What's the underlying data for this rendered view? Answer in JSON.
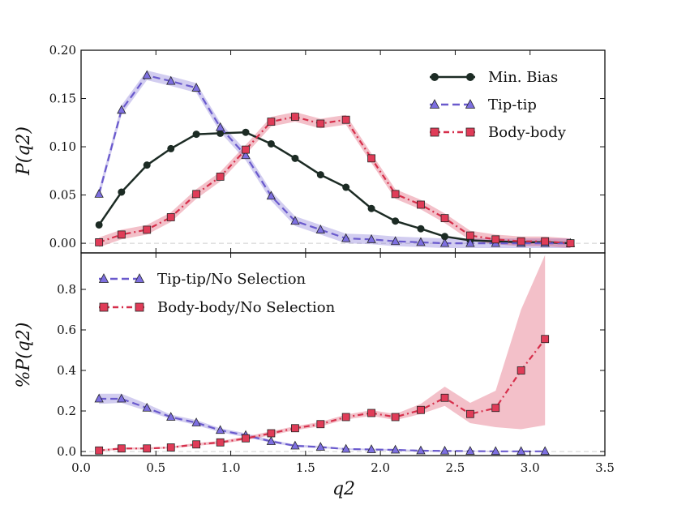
{
  "chart_data": [
    {
      "type": "line",
      "xlim": [
        0.0,
        3.5
      ],
      "ylim": [
        -0.01,
        0.2
      ],
      "ylabel": "P(q2)",
      "yticks": [
        "0.00",
        "0.05",
        "0.10",
        "0.15",
        "0.20"
      ],
      "legend_position": "top-right",
      "series": [
        {
          "name": "Min. Bias",
          "color": "#1c2b24",
          "marker": "circle",
          "x": [
            0.12,
            0.27,
            0.44,
            0.6,
            0.77,
            0.93,
            1.1,
            1.27,
            1.43,
            1.6,
            1.77,
            1.94,
            2.1,
            2.27,
            2.43,
            2.6,
            2.77,
            2.94,
            3.1,
            3.27
          ],
          "y": [
            0.019,
            0.053,
            0.081,
            0.098,
            0.113,
            0.114,
            0.115,
            0.103,
            0.088,
            0.071,
            0.058,
            0.036,
            0.023,
            0.015,
            0.007,
            0.003,
            0.002,
            0.001,
            0.001,
            0.0
          ]
        },
        {
          "name": "Tip-tip",
          "color": "#6a5acd",
          "marker": "triangle",
          "x": [
            0.12,
            0.27,
            0.44,
            0.6,
            0.77,
            0.93,
            1.1,
            1.27,
            1.43,
            1.6,
            1.77,
            1.94,
            2.1,
            2.27,
            2.43,
            2.6,
            2.77,
            2.94,
            3.1,
            3.27
          ],
          "y": [
            0.051,
            0.138,
            0.174,
            0.168,
            0.161,
            0.12,
            0.091,
            0.049,
            0.023,
            0.014,
            0.005,
            0.004,
            0.002,
            0.001,
            0.0,
            0.0,
            0.0,
            0.0,
            0.0,
            0.0
          ],
          "band": 0.005
        },
        {
          "name": "Body-body",
          "color": "#d62f4b",
          "marker": "square",
          "x": [
            0.12,
            0.27,
            0.44,
            0.6,
            0.77,
            0.93,
            1.1,
            1.27,
            1.43,
            1.6,
            1.77,
            1.94,
            2.1,
            2.27,
            2.43,
            2.6,
            2.77,
            2.94,
            3.1,
            3.27
          ],
          "y": [
            0.001,
            0.009,
            0.014,
            0.027,
            0.051,
            0.069,
            0.097,
            0.126,
            0.131,
            0.124,
            0.128,
            0.088,
            0.051,
            0.04,
            0.026,
            0.008,
            0.004,
            0.002,
            0.002,
            0.0
          ],
          "band": 0.005
        }
      ]
    },
    {
      "type": "line",
      "xlim": [
        0.0,
        3.5
      ],
      "ylim": [
        -0.02,
        0.98
      ],
      "xlabel": "q2",
      "ylabel": "%P(q2)",
      "xticks": [
        "0.0",
        "0.5",
        "1.0",
        "1.5",
        "2.0",
        "2.5",
        "3.0",
        "3.5"
      ],
      "yticks": [
        "0.0",
        "0.2",
        "0.4",
        "0.6",
        "0.8"
      ],
      "legend_position": "top-left",
      "series": [
        {
          "name": "Tip-tip/No Selection",
          "color": "#6a5acd",
          "marker": "triangle",
          "x": [
            0.12,
            0.27,
            0.44,
            0.6,
            0.77,
            0.93,
            1.1,
            1.27,
            1.43,
            1.6,
            1.77,
            1.94,
            2.1,
            2.27,
            2.43,
            2.6,
            2.77,
            2.94,
            3.1
          ],
          "y": [
            0.26,
            0.26,
            0.215,
            0.17,
            0.142,
            0.105,
            0.08,
            0.05,
            0.028,
            0.022,
            0.012,
            0.01,
            0.008,
            0.004,
            0.003,
            0.002,
            0.001,
            0.001,
            0.001
          ],
          "band_lo": [
            0.235,
            0.24,
            0.2,
            0.16,
            0.13,
            0.095,
            0.07,
            0.044,
            0.022,
            0.017,
            0.008,
            0.006,
            0.004,
            0.001,
            0.0,
            0.0,
            0.0,
            0.0,
            0.0
          ],
          "band_hi": [
            0.285,
            0.285,
            0.235,
            0.182,
            0.155,
            0.115,
            0.09,
            0.058,
            0.034,
            0.028,
            0.016,
            0.014,
            0.012,
            0.007,
            0.006,
            0.004,
            0.003,
            0.003,
            0.003
          ]
        },
        {
          "name": "Body-body/No Selection",
          "color": "#d62f4b",
          "marker": "square",
          "x": [
            0.12,
            0.27,
            0.44,
            0.6,
            0.77,
            0.93,
            1.1,
            1.27,
            1.43,
            1.6,
            1.77,
            1.94,
            2.1,
            2.27,
            2.43,
            2.6,
            2.77,
            2.94,
            3.1
          ],
          "y": [
            0.005,
            0.015,
            0.015,
            0.02,
            0.035,
            0.045,
            0.065,
            0.09,
            0.115,
            0.135,
            0.17,
            0.19,
            0.17,
            0.205,
            0.265,
            0.185,
            0.215,
            0.4,
            0.555
          ],
          "band_lo": [
            0.0,
            0.01,
            0.01,
            0.015,
            0.028,
            0.038,
            0.056,
            0.08,
            0.105,
            0.124,
            0.158,
            0.176,
            0.155,
            0.185,
            0.225,
            0.14,
            0.12,
            0.11,
            0.13
          ],
          "band_hi": [
            0.01,
            0.02,
            0.02,
            0.025,
            0.042,
            0.052,
            0.074,
            0.1,
            0.125,
            0.146,
            0.182,
            0.204,
            0.185,
            0.235,
            0.32,
            0.24,
            0.3,
            0.7,
            0.97
          ]
        }
      ]
    }
  ]
}
